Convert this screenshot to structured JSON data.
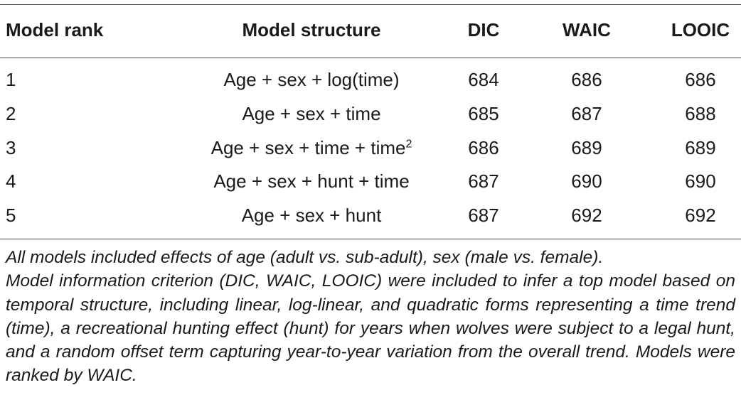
{
  "table": {
    "headers": [
      "Model rank",
      "Model structure",
      "DIC",
      "WAIC",
      "LOOIC"
    ],
    "rows": [
      {
        "rank": "1",
        "structure": "Age + sex + log(time)",
        "structure_sup": "",
        "dic": "684",
        "waic": "686",
        "looic": "686"
      },
      {
        "rank": "2",
        "structure": "Age + sex + time",
        "structure_sup": "",
        "dic": "685",
        "waic": "687",
        "looic": "688"
      },
      {
        "rank": "3",
        "structure": "Age + sex + time + time",
        "structure_sup": "2",
        "dic": "686",
        "waic": "689",
        "looic": "689"
      },
      {
        "rank": "4",
        "structure": "Age + sex + hunt + time",
        "structure_sup": "",
        "dic": "687",
        "waic": "690",
        "looic": "690"
      },
      {
        "rank": "5",
        "structure": "Age + sex + hunt",
        "structure_sup": "",
        "dic": "687",
        "waic": "692",
        "looic": "692"
      }
    ]
  },
  "footnote": {
    "line1": "All models included effects of age (adult vs. sub-adult), sex (male vs. female).",
    "line2": "Model information criterion (DIC, WAIC, LOOIC) were included to infer a top model based on temporal structure, including linear, log-linear, and quadratic forms representing a time trend (time), a recreational hunting effect (hunt) for years when wolves were subject to a legal hunt, and a random offset term capturing year-to-year variation from the overall trend. Models were ranked by WAIC."
  }
}
